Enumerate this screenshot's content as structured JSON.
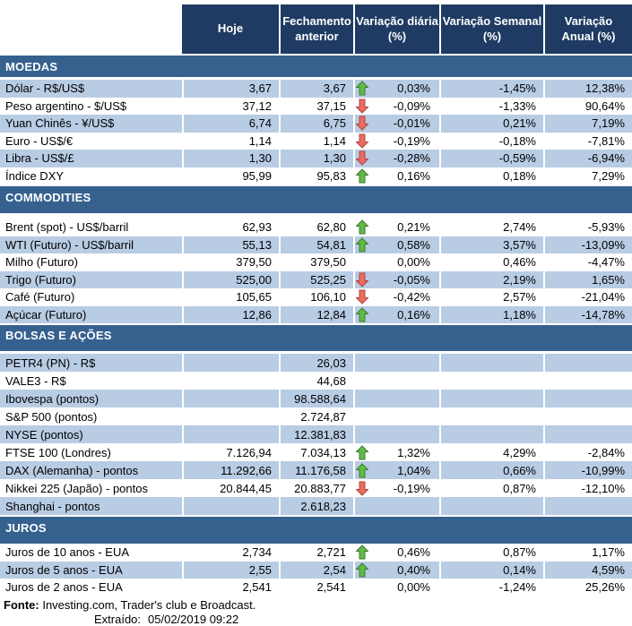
{
  "header": {
    "columns": [
      {
        "label": "Hoje"
      },
      {
        "label": "Fechamento\nanterior"
      },
      {
        "label": "Variação diária\n(%)"
      },
      {
        "label": "Variação Semanal\n(%)"
      },
      {
        "label": "Variação\nAnual (%)"
      }
    ]
  },
  "colors": {
    "header_navy": "#1F3B63",
    "section_blue": "#36618F",
    "row_lightblue": "#B8CCE4",
    "arrow_up_fill": "#5FBB46",
    "arrow_up_stroke": "#3F7A2D",
    "arrow_down_fill": "#E86D64",
    "arrow_down_stroke": "#B5443C"
  },
  "icons": {
    "up": "arrow-up-icon",
    "down": "arrow-down-icon"
  },
  "sections": [
    {
      "title": "MOEDAS",
      "rows": [
        {
          "label": "Dólar - R$/US$",
          "hoje": "3,67",
          "fechamento": "3,67",
          "arrow": "up",
          "diaria": "0,03%",
          "semanal": "-1,45%",
          "anual": "12,38%"
        },
        {
          "label": "Peso argentino - $/US$",
          "hoje": "37,12",
          "fechamento": "37,15",
          "arrow": "down",
          "diaria": "-0,09%",
          "semanal": "-1,33%",
          "anual": "90,64%"
        },
        {
          "label": "Yuan Chinês - ¥/US$",
          "hoje": "6,74",
          "fechamento": "6,75",
          "arrow": "down",
          "diaria": "-0,01%",
          "semanal": "0,21%",
          "anual": "7,19%"
        },
        {
          "label": "Euro - US$/€",
          "hoje": "1,14",
          "fechamento": "1,14",
          "arrow": "down",
          "diaria": "-0,19%",
          "semanal": "-0,18%",
          "anual": "-7,81%"
        },
        {
          "label": "Libra - US$/£",
          "hoje": "1,30",
          "fechamento": "1,30",
          "arrow": "down",
          "diaria": "-0,28%",
          "semanal": "-0,59%",
          "anual": "-6,94%"
        },
        {
          "label": "Índice DXY",
          "hoje": "95,99",
          "fechamento": "95,83",
          "arrow": "up",
          "diaria": "0,16%",
          "semanal": "0,18%",
          "anual": "7,29%"
        }
      ]
    },
    {
      "title": "COMMODITIES",
      "rows": [
        {
          "label": "Brent (spot) - US$/barril",
          "hoje": "62,93",
          "fechamento": "62,80",
          "arrow": "up",
          "diaria": "0,21%",
          "semanal": "2,74%",
          "anual": "-5,93%"
        },
        {
          "label": "WTI (Futuro) - US$/barril",
          "hoje": "55,13",
          "fechamento": "54,81",
          "arrow": "up",
          "diaria": "0,58%",
          "semanal": "3,57%",
          "anual": "-13,09%"
        },
        {
          "label": "Milho (Futuro)",
          "hoje": "379,50",
          "fechamento": "379,50",
          "arrow": "",
          "diaria": "0,00%",
          "semanal": "0,46%",
          "anual": "-4,47%"
        },
        {
          "label": "Trigo (Futuro)",
          "hoje": "525,00",
          "fechamento": "525,25",
          "arrow": "down",
          "diaria": "-0,05%",
          "semanal": "2,19%",
          "anual": "1,65%"
        },
        {
          "label": "Café (Futuro)",
          "hoje": "105,65",
          "fechamento": "106,10",
          "arrow": "down",
          "diaria": "-0,42%",
          "semanal": "2,57%",
          "anual": "-21,04%"
        },
        {
          "label": "Açúcar (Futuro)",
          "hoje": "12,86",
          "fechamento": "12,84",
          "arrow": "up",
          "diaria": "0,16%",
          "semanal": "1,18%",
          "anual": "-14,78%"
        }
      ]
    },
    {
      "title": "BOLSAS E AÇÕES",
      "rows": [
        {
          "label": "PETR4 (PN) - R$",
          "hoje": "",
          "fechamento": "26,03",
          "arrow": "",
          "diaria": "",
          "semanal": "",
          "anual": ""
        },
        {
          "label": "VALE3 - R$",
          "hoje": "",
          "fechamento": "44,68",
          "arrow": "",
          "diaria": "",
          "semanal": "",
          "anual": ""
        },
        {
          "label": "Ibovespa (pontos)",
          "hoje": "",
          "fechamento": "98.588,64",
          "arrow": "",
          "diaria": "",
          "semanal": "",
          "anual": ""
        },
        {
          "label": "S&P 500 (pontos)",
          "hoje": "",
          "fechamento": "2.724,87",
          "arrow": "",
          "diaria": "",
          "semanal": "",
          "anual": ""
        },
        {
          "label": "NYSE (pontos)",
          "hoje": "",
          "fechamento": "12.381,83",
          "arrow": "",
          "diaria": "",
          "semanal": "",
          "anual": ""
        },
        {
          "label": "FTSE 100 (Londres)",
          "hoje": "7.126,94",
          "fechamento": "7.034,13",
          "arrow": "up",
          "diaria": "1,32%",
          "semanal": "4,29%",
          "anual": "-2,84%"
        },
        {
          "label": "DAX (Alemanha) - pontos",
          "hoje": "11.292,66",
          "fechamento": "11.176,58",
          "arrow": "up",
          "diaria": "1,04%",
          "semanal": "0,66%",
          "anual": "-10,99%"
        },
        {
          "label": "Nikkei 225 (Japão) - pontos",
          "hoje": "20.844,45",
          "fechamento": "20.883,77",
          "arrow": "down",
          "diaria": "-0,19%",
          "semanal": "0,87%",
          "anual": "-12,10%"
        },
        {
          "label": "Shanghai - pontos",
          "hoje": "",
          "fechamento": "2.618,23",
          "arrow": "",
          "diaria": "",
          "semanal": "",
          "anual": ""
        }
      ]
    },
    {
      "title": "JUROS",
      "rows": [
        {
          "label": "Juros de 10 anos - EUA",
          "hoje": "2,734",
          "fechamento": "2,721",
          "arrow": "up",
          "diaria": "0,46%",
          "semanal": "0,87%",
          "anual": "1,17%"
        },
        {
          "label": "Juros de 5 anos - EUA",
          "hoje": "2,55",
          "fechamento": "2,54",
          "arrow": "up",
          "diaria": "0,40%",
          "semanal": "0,14%",
          "anual": "4,59%"
        },
        {
          "label": "Juros de 2 anos - EUA",
          "hoje": "2,541",
          "fechamento": "2,541",
          "arrow": "",
          "diaria": "0,00%",
          "semanal": "-1,24%",
          "anual": "25,26%"
        }
      ]
    }
  ],
  "footer": {
    "fonte_label": "Fonte:",
    "fonte_text": " Investing.com, Trader's club e Broadcast.",
    "extraido_label": "Extraído:",
    "extraido_value": "05/02/2019 09:22"
  }
}
